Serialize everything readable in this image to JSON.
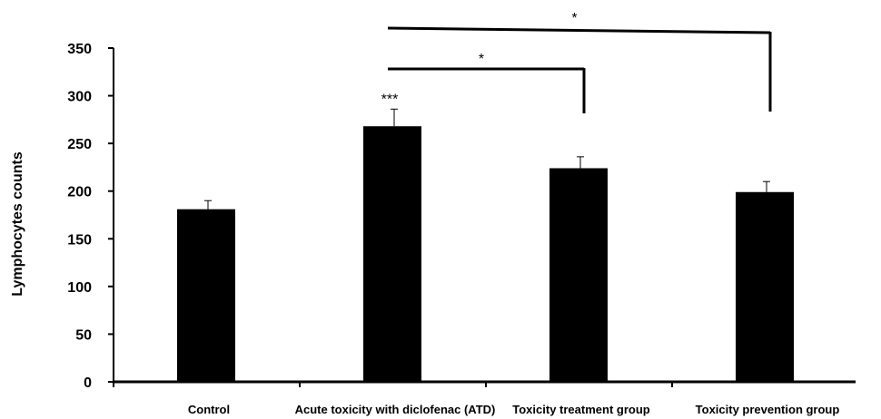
{
  "chart_data": {
    "type": "bar",
    "categories": [
      "Control",
      "Acute toxicity with diclofenac (ATD)",
      "Toxicity treatment group",
      "Toxicity prevention group"
    ],
    "values": [
      181,
      268,
      224,
      199
    ],
    "errors": [
      9,
      18,
      12,
      11
    ],
    "ylabel": "Lymphocytes counts",
    "ylim": [
      0,
      350
    ],
    "yticks": [
      0,
      50,
      100,
      150,
      200,
      250,
      300,
      350
    ],
    "bar_color": "#000000",
    "grid": false,
    "annotations": [
      {
        "bar_index": 1,
        "text": "***"
      }
    ],
    "significance_brackets": [
      {
        "from": 1,
        "to": 2,
        "text": "*"
      },
      {
        "from": 1,
        "to": 3,
        "text": "*"
      }
    ]
  }
}
